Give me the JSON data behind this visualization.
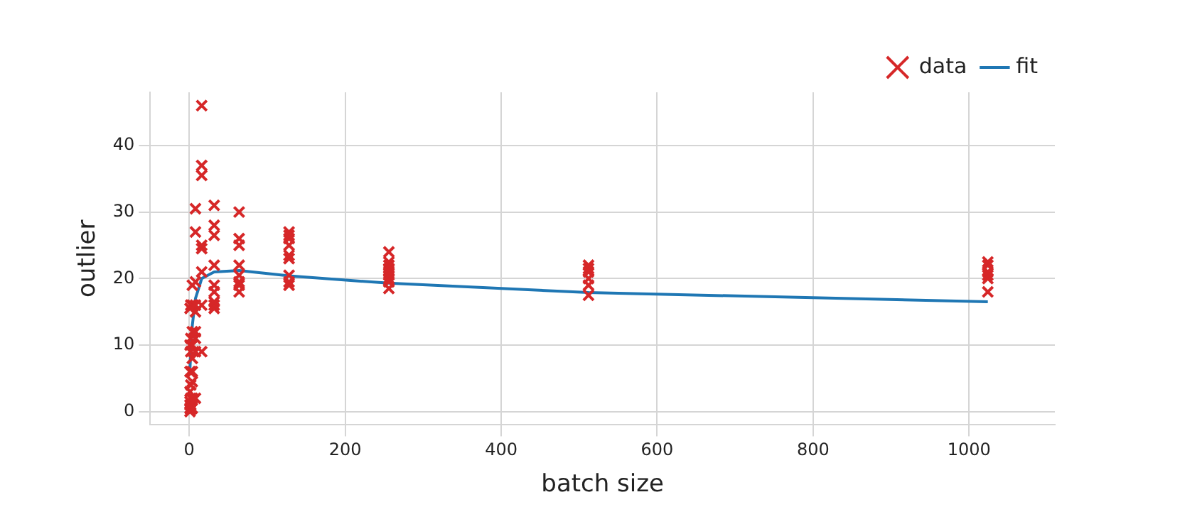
{
  "chart_data": {
    "type": "scatter",
    "xlabel": "batch size",
    "ylabel": "outlier",
    "xlim": [
      -50,
      1110
    ],
    "xticks": [
      0,
      200,
      400,
      600,
      800,
      1000
    ],
    "ylim": [
      -2,
      48
    ],
    "yticks": [
      0,
      10,
      20,
      30,
      40
    ],
    "grid": true,
    "legend": "top right",
    "series": [
      {
        "name": "data",
        "type": "scatter",
        "marker": "cross",
        "color": "#d62728",
        "x": [
          1,
          1,
          1,
          1,
          1,
          1,
          1,
          1,
          2,
          2,
          2,
          2,
          2,
          2,
          2,
          2,
          4,
          4,
          4,
          4,
          4,
          4,
          4,
          4,
          4,
          8,
          8,
          8,
          8,
          8,
          8,
          8,
          8,
          8,
          16,
          16,
          16,
          16,
          16,
          16,
          16,
          16,
          32,
          32,
          32,
          32,
          32,
          32,
          32,
          32,
          32,
          64,
          64,
          64,
          64,
          64,
          64,
          64,
          64,
          128,
          128,
          128,
          128,
          128,
          128,
          128,
          128,
          128,
          256,
          256,
          256,
          256,
          256,
          256,
          256,
          256,
          256,
          512,
          512,
          512,
          512,
          512,
          512,
          1024,
          1024,
          1024,
          1024,
          1024,
          1024
        ],
        "values": [
          0,
          0.5,
          1,
          1.5,
          3,
          6,
          10,
          15.5,
          0.3,
          1,
          2,
          4,
          6,
          9,
          11,
          16,
          0.5,
          2,
          4.5,
          6,
          8,
          10,
          12,
          16,
          19,
          2,
          9,
          11,
          12,
          15,
          16,
          19.5,
          27,
          30.5,
          9,
          16,
          21,
          24.5,
          25,
          35.5,
          37,
          46,
          15.5,
          16,
          16.5,
          18,
          19,
          22,
          26.5,
          28,
          31,
          18,
          19,
          19.5,
          20.5,
          22,
          25,
          26,
          30,
          19,
          19.5,
          20.5,
          23,
          23.5,
          25,
          26,
          26.5,
          27,
          18.5,
          19.5,
          20,
          20.5,
          21,
          21.5,
          22,
          22.5,
          24,
          17.5,
          19,
          20,
          21,
          21.5,
          22,
          18,
          20,
          20.5,
          21,
          22,
          22.5
        ]
      },
      {
        "name": "fit",
        "type": "line",
        "marker": "none",
        "color": "#1f77b4",
        "x": [
          1,
          2,
          4,
          8,
          16,
          32,
          64,
          128,
          256,
          512,
          1024
        ],
        "values": [
          6.5,
          9,
          13,
          17,
          20,
          21,
          21.2,
          20.4,
          19.3,
          17.9,
          16.5
        ]
      }
    ]
  }
}
